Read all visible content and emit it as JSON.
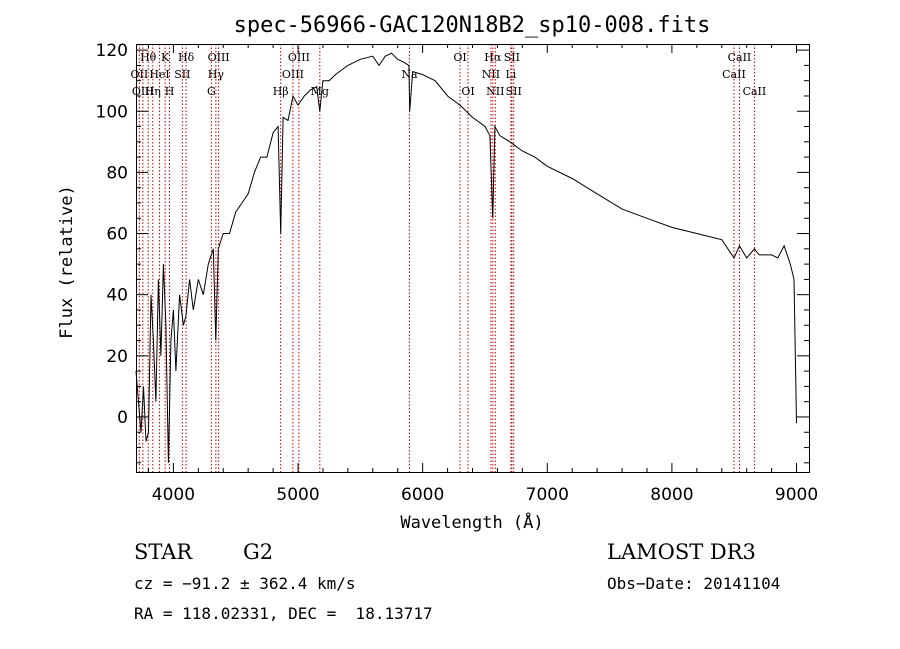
{
  "chart_data": {
    "type": "line",
    "title": "spec-56966-GAC120N18B2_sp10-008.fits",
    "xlabel": "Wavelength (Å)",
    "ylabel": "Flux (relative)",
    "xlim": [
      3700,
      9100
    ],
    "ylim": [
      -18,
      122
    ],
    "xticks": [
      4000,
      5000,
      6000,
      7000,
      8000,
      9000
    ],
    "yticks": [
      0,
      20,
      40,
      60,
      80,
      100,
      120
    ],
    "series": [
      {
        "name": "flux",
        "x": [
          3700,
          3720,
          3740,
          3760,
          3780,
          3800,
          3820,
          3840,
          3860,
          3880,
          3900,
          3920,
          3940,
          3960,
          3980,
          4000,
          4020,
          4050,
          4080,
          4100,
          4130,
          4160,
          4200,
          4240,
          4280,
          4320,
          4340,
          4360,
          4400,
          4450,
          4500,
          4550,
          4600,
          4650,
          4700,
          4750,
          4800,
          4840,
          4861,
          4880,
          4920,
          4960,
          5000,
          5050,
          5100,
          5150,
          5175,
          5200,
          5250,
          5300,
          5400,
          5500,
          5600,
          5650,
          5700,
          5750,
          5800,
          5850,
          5890,
          5896,
          5920,
          6000,
          6100,
          6200,
          6300,
          6400,
          6500,
          6540,
          6563,
          6580,
          6620,
          6700,
          6800,
          6900,
          7000,
          7200,
          7400,
          7600,
          7800,
          8000,
          8200,
          8400,
          8498,
          8542,
          8600,
          8662,
          8700,
          8800,
          8850,
          8900,
          8950,
          8980,
          9000
        ],
        "values": [
          15,
          5,
          -5,
          10,
          -8,
          -5,
          40,
          25,
          5,
          45,
          20,
          50,
          30,
          -15,
          25,
          35,
          15,
          40,
          30,
          33,
          45,
          35,
          45,
          40,
          50,
          55,
          25,
          55,
          60,
          60,
          67,
          70,
          73,
          80,
          85,
          85,
          93,
          95,
          60,
          98,
          97,
          105,
          102,
          105,
          107,
          108,
          100,
          110,
          110,
          112,
          115,
          117,
          118,
          115,
          118,
          119,
          117,
          116,
          115,
          100,
          113,
          112,
          110,
          105,
          102,
          98,
          95,
          92,
          65,
          95,
          92,
          90,
          87,
          85,
          82,
          78,
          73,
          68,
          65,
          62,
          60,
          58,
          52,
          56,
          52,
          55,
          53,
          53,
          52,
          56,
          50,
          45,
          -2
        ]
      }
    ],
    "lines": [
      {
        "label": "Hθ",
        "x": 3798,
        "row": 0
      },
      {
        "label": "OII",
        "x": 3727,
        "row": 1
      },
      {
        "label": "OIII",
        "x": 3755,
        "row": 2
      },
      {
        "label": "HeI",
        "x": 3889,
        "row": 1
      },
      {
        "label": "K",
        "x": 3934,
        "row": 0
      },
      {
        "label": "Hη",
        "x": 3835,
        "row": 2
      },
      {
        "label": "SII",
        "x": 4072,
        "row": 1
      },
      {
        "label": "H",
        "x": 3969,
        "row": 2
      },
      {
        "label": "Hδ",
        "x": 4102,
        "row": 0
      },
      {
        "label": "OIII",
        "x": 4363,
        "row": 0
      },
      {
        "label": "Hγ",
        "x": 4341,
        "row": 1
      },
      {
        "label": "G",
        "x": 4305,
        "row": 2
      },
      {
        "label": "OIII",
        "x": 5007,
        "row": 0
      },
      {
        "label": "OIII",
        "x": 4959,
        "row": 1
      },
      {
        "label": "Hβ",
        "x": 4861,
        "row": 2
      },
      {
        "label": "Mg",
        "x": 5175,
        "row": 2
      },
      {
        "label": "Na",
        "x": 5894,
        "row": 1
      },
      {
        "label": "OI",
        "x": 6300,
        "row": 0
      },
      {
        "label": "OI",
        "x": 6364,
        "row": 2
      },
      {
        "label": "Hα",
        "x": 6563,
        "row": 0
      },
      {
        "label": "SII",
        "x": 6716,
        "row": 0
      },
      {
        "label": "NII",
        "x": 6548,
        "row": 1
      },
      {
        "label": "Li",
        "x": 6708,
        "row": 1
      },
      {
        "label": "NII",
        "x": 6583,
        "row": 2
      },
      {
        "label": "SII",
        "x": 6731,
        "row": 2
      },
      {
        "label": "CaII",
        "x": 8542,
        "row": 0
      },
      {
        "label": "CaII",
        "x": 8498,
        "row": 1
      },
      {
        "label": "CaII",
        "x": 8662,
        "row": 2
      }
    ]
  },
  "info": {
    "object_class": "STAR",
    "subclass": "G2",
    "survey": "LAMOST DR3",
    "redshift": "cz = −91.2 ± 362.4 km/s",
    "obs_date": "Obs−Date: 20141104",
    "coords": "RA = 118.02331, DEC =  18.13717"
  }
}
